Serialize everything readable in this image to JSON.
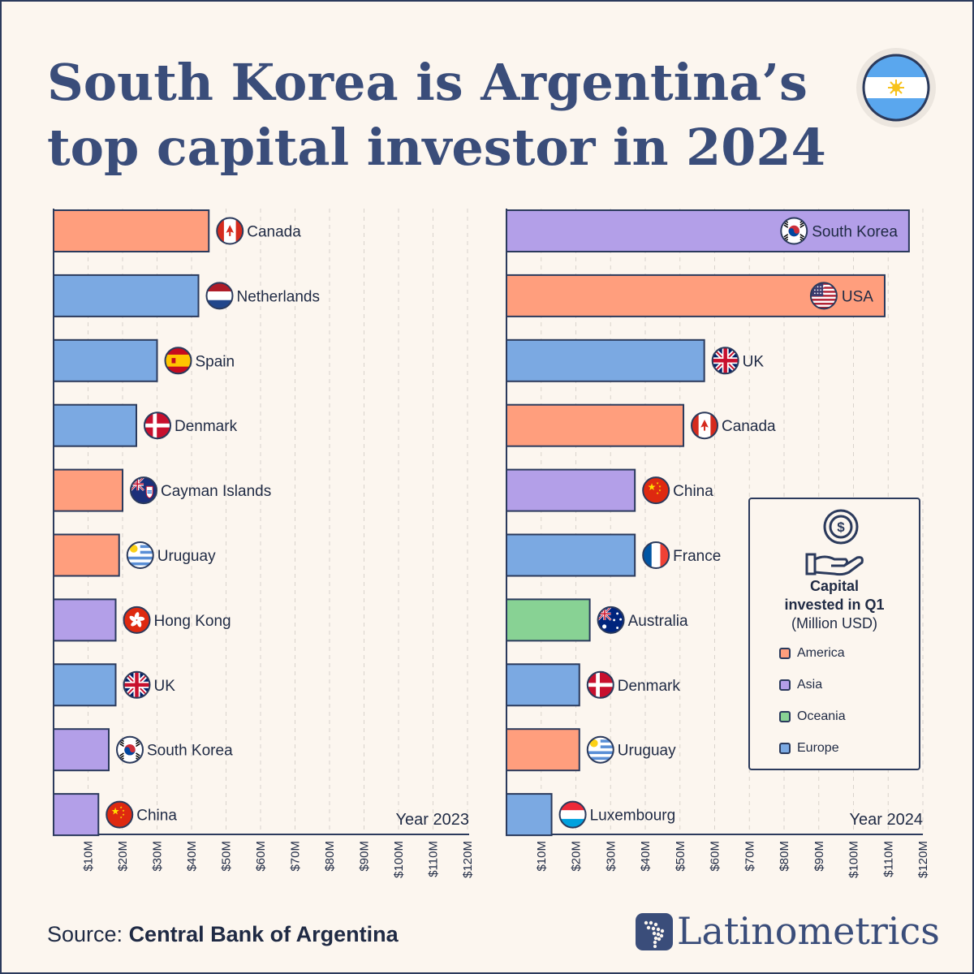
{
  "title_line1": "South Korea is Argentina’s",
  "title_line2": "top capital investor in 2024",
  "colors": {
    "America": "#ff9e7d",
    "Asia": "#b39fe8",
    "Oceania": "#88d294",
    "Europe": "#7ba9e2",
    "border": "#2b3a5c",
    "background": "#fcf6ef"
  },
  "legend": {
    "title_line1": "Capital",
    "title_line2": "invested in Q1",
    "unit": "(Million USD)",
    "items": [
      {
        "label": "America",
        "color": "#ff9e7d"
      },
      {
        "label": "Asia",
        "color": "#b39fe8"
      },
      {
        "label": "Oceania",
        "color": "#88d294"
      },
      {
        "label": "Europe",
        "color": "#7ba9e2"
      }
    ],
    "icon": "coin-in-hand-icon"
  },
  "source_prefix": "Source: ",
  "source_name": "Central Bank of Argentina",
  "brand": "Latinometrics",
  "chart_data": [
    {
      "type": "bar",
      "orientation": "horizontal",
      "year_label": "Year 2023",
      "categories": [
        "Canada",
        "Netherlands",
        "Spain",
        "Denmark",
        "Cayman Islands",
        "Uruguay",
        "Hong Kong",
        "UK",
        "South Korea",
        "China"
      ],
      "values": [
        45,
        42,
        30,
        24,
        20,
        19,
        18,
        18,
        16,
        13
      ],
      "regions": [
        "America",
        "Europe",
        "Europe",
        "Europe",
        "America",
        "America",
        "Asia",
        "Europe",
        "Asia",
        "Asia"
      ],
      "flags": [
        "canada-flag",
        "netherlands-flag",
        "spain-flag",
        "denmark-flag",
        "cayman-islands-flag",
        "uruguay-flag",
        "hong-kong-flag",
        "uk-flag",
        "south-korea-flag",
        "china-flag"
      ],
      "xlim": [
        0,
        120
      ],
      "ticks": [
        "$10M",
        "$20M",
        "$30M",
        "$40M",
        "$50M",
        "$60M",
        "$70M",
        "$80M",
        "$90M",
        "$100M",
        "$110M",
        "$120M"
      ],
      "grid": true
    },
    {
      "type": "bar",
      "orientation": "horizontal",
      "year_label": "Year 2024",
      "categories": [
        "South Korea",
        "USA",
        "UK",
        "Canada",
        "China",
        "France",
        "Australia",
        "Denmark",
        "Uruguay",
        "Luxembourg"
      ],
      "values": [
        116,
        109,
        57,
        51,
        37,
        37,
        24,
        21,
        21,
        13
      ],
      "regions": [
        "Asia",
        "America",
        "Europe",
        "America",
        "Asia",
        "Europe",
        "Oceania",
        "Europe",
        "America",
        "Europe"
      ],
      "flags": [
        "south-korea-flag",
        "usa-flag",
        "uk-flag",
        "canada-flag",
        "china-flag",
        "france-flag",
        "australia-flag",
        "denmark-flag",
        "uruguay-flag",
        "luxembourg-flag"
      ],
      "xlim": [
        0,
        120
      ],
      "ticks": [
        "$10M",
        "$20M",
        "$30M",
        "$40M",
        "$50M",
        "$60M",
        "$70M",
        "$80M",
        "$90M",
        "$100M",
        "$110M",
        "$120M"
      ],
      "grid": true
    }
  ]
}
